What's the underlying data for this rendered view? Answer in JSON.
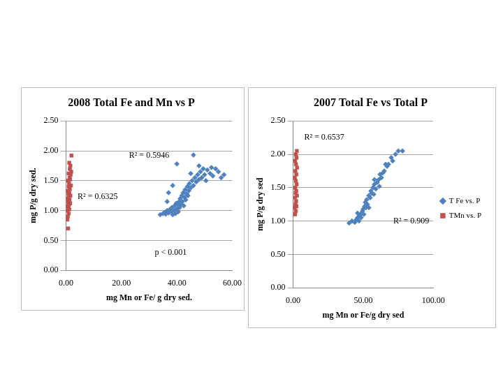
{
  "chart_data": [
    {
      "type": "scatter",
      "title": "2008 Total Fe and Mn vs P",
      "x_label": "mg Mn or Fe/ g dry sed.",
      "y_label": "mg P/g dry sed.",
      "xlim": [
        0,
        60
      ],
      "ylim": [
        0,
        2.5
      ],
      "xticks": [
        {
          "value": 0,
          "label": "0.00"
        },
        {
          "value": 20,
          "label": "20.00"
        },
        {
          "value": 40,
          "label": "40.00"
        },
        {
          "value": 60,
          "label": "60.00"
        }
      ],
      "yticks": [
        {
          "value": 0,
          "label": "0.00"
        },
        {
          "value": 0.5,
          "label": "0.50"
        },
        {
          "value": 1,
          "label": "1.00"
        },
        {
          "value": 1.5,
          "label": "1.50"
        },
        {
          "value": 2,
          "label": "2.00"
        },
        {
          "value": 2.5,
          "label": "2.50"
        }
      ],
      "grid": "y",
      "annotations": [
        "R² = 0.5946",
        "R² = 0.6325",
        "p < 0.001"
      ],
      "series": [
        {
          "color": "#4f81bd",
          "marker": "diamond",
          "x": [
            34,
            35,
            35.5,
            36,
            36.5,
            37,
            37.5,
            38,
            38.2,
            38.5,
            39,
            39.2,
            39.5,
            39.8,
            40,
            40.3,
            40.5,
            40.8,
            41,
            41.2,
            41.5,
            41.8,
            42,
            42.3,
            42.5,
            42.8,
            43,
            43.2,
            43.5,
            43.8,
            44,
            44.3,
            44.5,
            45,
            45.5,
            46,
            46.5,
            47,
            47.5,
            48,
            48.5,
            49,
            49.5,
            50,
            50.5,
            51,
            52,
            52.5,
            53,
            54,
            55,
            56,
            57,
            46,
            40,
            38.5,
            37,
            36.5,
            48,
            45
          ],
          "values": [
            0.93,
            0.95,
            0.97,
            0.94,
            1.0,
            0.96,
            1.02,
            0.98,
            1.05,
            0.93,
            1.0,
            1.08,
            0.95,
            1.12,
            1.03,
            1.1,
            0.98,
            1.15,
            1.05,
            1.2,
            1.1,
            1.25,
            1.15,
            1.3,
            1.08,
            1.22,
            1.35,
            1.18,
            1.28,
            1.4,
            1.25,
            1.33,
            1.45,
            1.38,
            1.5,
            1.42,
            1.55,
            1.48,
            1.6,
            1.52,
            1.65,
            1.55,
            1.7,
            1.6,
            1.5,
            1.68,
            1.62,
            1.72,
            1.58,
            1.7,
            1.65,
            1.55,
            1.6,
            1.93,
            1.78,
            1.42,
            1.3,
            1.15,
            1.75,
            1.62
          ]
        },
        {
          "color": "#c0504d",
          "marker": "square",
          "x": [
            0.8,
            0.5,
            0.7,
            1.0,
            0.6,
            1.2,
            0.9,
            0.4,
            1.1,
            1.5,
            0.8,
            1.3,
            0.6,
            1.0,
            1.6,
            0.9,
            1.2,
            0.7,
            1.4,
            1.0,
            1.8,
            1.1,
            0.8,
            1.5,
            1.3,
            1.7,
            1.0,
            1.9,
            1.4,
            1.6,
            1.2,
            2.0
          ],
          "values": [
            0.7,
            0.85,
            0.9,
            0.95,
            1.0,
            1.02,
            1.05,
            1.08,
            1.1,
            1.12,
            1.15,
            1.18,
            1.2,
            1.22,
            1.25,
            1.28,
            1.3,
            1.33,
            1.36,
            1.4,
            1.42,
            1.45,
            1.5,
            1.52,
            1.55,
            1.6,
            1.62,
            1.65,
            1.7,
            1.75,
            1.8,
            1.92
          ]
        }
      ]
    },
    {
      "type": "scatter",
      "title": "2007 Total Fe vs Total P",
      "x_label": "mg Mn or Fe/g dry sed",
      "y_label": "mg P/g dry sed",
      "xlim": [
        0,
        100
      ],
      "ylim": [
        0,
        2.5
      ],
      "xticks": [
        {
          "value": 0,
          "label": "0.00"
        },
        {
          "value": 50,
          "label": "50.00"
        },
        {
          "value": 100,
          "label": "100.00"
        }
      ],
      "yticks": [
        {
          "value": 0,
          "label": "0.00"
        },
        {
          "value": 0.5,
          "label": "0.50"
        },
        {
          "value": 1,
          "label": "1.00"
        },
        {
          "value": 1.5,
          "label": "1.50"
        },
        {
          "value": 2,
          "label": "2.00"
        },
        {
          "value": 2.5,
          "label": "2.50"
        }
      ],
      "grid": "y",
      "legend": "right",
      "annotations": [
        "R² = 0.6537",
        "R² = 0.909"
      ],
      "series": [
        {
          "name": "T Fe vs. P",
          "color": "#4f81bd",
          "marker": "diamond",
          "x": [
            40,
            42,
            44,
            45,
            46,
            47,
            47.5,
            48,
            48.5,
            49,
            49.5,
            50,
            50.5,
            51,
            51.5,
            52,
            52.5,
            53,
            54,
            55,
            55.5,
            56,
            57,
            57.5,
            58,
            59,
            60,
            61,
            61.5,
            62,
            63,
            64,
            65,
            66,
            67,
            68,
            70,
            71,
            73,
            75,
            78,
            58,
            54,
            46
          ],
          "values": [
            0.97,
            1.0,
            0.98,
            1.02,
            1.05,
            1.0,
            1.08,
            1.1,
            1.05,
            1.12,
            1.15,
            1.18,
            1.1,
            1.22,
            1.28,
            1.2,
            1.32,
            1.25,
            1.38,
            1.35,
            1.45,
            1.42,
            1.5,
            1.4,
            1.55,
            1.48,
            1.58,
            1.62,
            1.52,
            1.7,
            1.65,
            1.72,
            1.75,
            1.85,
            1.82,
            1.85,
            1.95,
            1.9,
            2.0,
            2.05,
            2.05,
            1.62,
            1.2,
            1.12
          ]
        },
        {
          "name": "TMn vs. P",
          "color": "#c0504d",
          "marker": "square",
          "x": [
            1.5,
            2.0,
            1.2,
            2.5,
            1.8,
            2.2,
            1.4,
            2.8,
            1.9,
            2.3,
            1.6,
            2.6,
            2.0,
            1.3,
            2.4,
            1.7,
            2.9,
            2.1,
            1.5,
            2.5,
            2.0,
            2.7
          ],
          "values": [
            1.1,
            1.15,
            1.2,
            1.22,
            1.25,
            1.3,
            1.35,
            1.38,
            1.42,
            1.45,
            1.5,
            1.55,
            1.6,
            1.65,
            1.7,
            1.75,
            1.8,
            1.85,
            1.9,
            1.95,
            2.0,
            2.05
          ]
        }
      ]
    }
  ]
}
